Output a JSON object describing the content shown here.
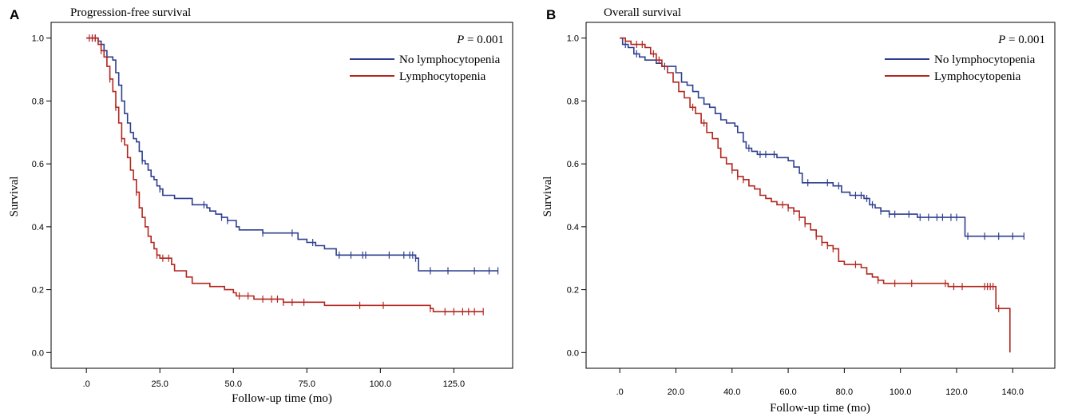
{
  "figure": {
    "colors": {
      "no_lympho": "#2e3f8f",
      "lympho": "#b3261e",
      "axis": "#000000"
    }
  },
  "chart_data": [
    {
      "type": "line",
      "panel": "A",
      "title": "Progression-free survival",
      "xlabel": "Follow-up time (mo)",
      "ylabel": "Survival",
      "xlim": [
        -12,
        145
      ],
      "ylim": [
        -0.05,
        1.05
      ],
      "x_ticks": [
        0,
        25,
        50,
        75,
        100,
        125
      ],
      "x_tick_labels": [
        ".0",
        "25.0",
        "50.0",
        "75.0",
        "100.0",
        "125.0"
      ],
      "y_ticks": [
        0,
        0.2,
        0.4,
        0.6,
        0.8,
        1.0
      ],
      "y_tick_labels": [
        "0.0",
        "0.2",
        "0.4",
        "0.6",
        "0.8",
        "1.0"
      ],
      "p_value": {
        "prefix": "P",
        "text": " = 0.001"
      },
      "legend_position": "top-right",
      "series": [
        {
          "name": "No lymphocytopenia",
          "color": "#2e3f8f",
          "steps": [
            [
              0,
              1.0
            ],
            [
              4,
              0.99
            ],
            [
              5,
              0.98
            ],
            [
              6,
              0.96
            ],
            [
              7,
              0.94
            ],
            [
              9,
              0.93
            ],
            [
              10,
              0.89
            ],
            [
              11,
              0.85
            ],
            [
              12,
              0.8
            ],
            [
              13,
              0.76
            ],
            [
              14,
              0.73
            ],
            [
              15,
              0.7
            ],
            [
              16,
              0.68
            ],
            [
              17,
              0.67
            ],
            [
              18,
              0.64
            ],
            [
              19,
              0.61
            ],
            [
              20,
              0.6
            ],
            [
              21,
              0.58
            ],
            [
              22,
              0.56
            ],
            [
              23,
              0.55
            ],
            [
              24,
              0.53
            ],
            [
              25,
              0.52
            ],
            [
              26,
              0.5
            ],
            [
              30,
              0.49
            ],
            [
              36,
              0.47
            ],
            [
              41,
              0.46
            ],
            [
              42,
              0.45
            ],
            [
              44,
              0.44
            ],
            [
              46,
              0.43
            ],
            [
              48,
              0.42
            ],
            [
              51,
              0.4
            ],
            [
              52,
              0.39
            ],
            [
              60,
              0.38
            ],
            [
              72,
              0.36
            ],
            [
              75,
              0.35
            ],
            [
              78,
              0.34
            ],
            [
              81,
              0.33
            ],
            [
              85,
              0.31
            ],
            [
              112,
              0.3
            ],
            [
              113,
              0.26
            ],
            [
              140,
              0.26
            ]
          ],
          "censors": [
            2,
            3,
            5,
            19,
            25,
            40,
            46,
            48,
            60,
            70,
            77,
            86,
            90,
            94,
            95,
            103,
            108,
            110,
            111,
            112,
            117,
            123,
            132,
            137,
            140
          ]
        },
        {
          "name": "Lymphocytopenia",
          "color": "#b3261e",
          "steps": [
            [
              0,
              1.0
            ],
            [
              4,
              0.98
            ],
            [
              5,
              0.96
            ],
            [
              6,
              0.94
            ],
            [
              7,
              0.91
            ],
            [
              8,
              0.87
            ],
            [
              9,
              0.83
            ],
            [
              10,
              0.78
            ],
            [
              11,
              0.73
            ],
            [
              12,
              0.68
            ],
            [
              13,
              0.66
            ],
            [
              14,
              0.62
            ],
            [
              15,
              0.58
            ],
            [
              16,
              0.55
            ],
            [
              17,
              0.51
            ],
            [
              18,
              0.46
            ],
            [
              19,
              0.43
            ],
            [
              20,
              0.4
            ],
            [
              21,
              0.37
            ],
            [
              22,
              0.35
            ],
            [
              23,
              0.33
            ],
            [
              24,
              0.31
            ],
            [
              25,
              0.3
            ],
            [
              29,
              0.28
            ],
            [
              30,
              0.26
            ],
            [
              34,
              0.24
            ],
            [
              36,
              0.22
            ],
            [
              42,
              0.21
            ],
            [
              47,
              0.2
            ],
            [
              50,
              0.19
            ],
            [
              51,
              0.18
            ],
            [
              57,
              0.17
            ],
            [
              67,
              0.16
            ],
            [
              81,
              0.15
            ],
            [
              117,
              0.14
            ],
            [
              118,
              0.13
            ],
            [
              135,
              0.13
            ]
          ],
          "censors": [
            1,
            2,
            3,
            5,
            8,
            10,
            12,
            17,
            24,
            26,
            28,
            52,
            55,
            60,
            63,
            65,
            67,
            70,
            74,
            93,
            101,
            117,
            122,
            125,
            128,
            130,
            132,
            135
          ]
        }
      ]
    },
    {
      "type": "line",
      "panel": "B",
      "title": "Overall survival",
      "xlabel": "Follow-up time (mo)",
      "ylabel": "Survival",
      "xlim": [
        -12,
        155
      ],
      "ylim": [
        -0.05,
        1.05
      ],
      "x_ticks": [
        0,
        20,
        40,
        60,
        80,
        100,
        120,
        140
      ],
      "x_tick_labels": [
        ".0",
        "20.0",
        "40.0",
        "60.0",
        "80.0",
        "100.0",
        "120.0",
        "140.0"
      ],
      "y_ticks": [
        0,
        0.2,
        0.4,
        0.6,
        0.8,
        1.0
      ],
      "y_tick_labels": [
        "0.0",
        "0.2",
        "0.4",
        "0.6",
        "0.8",
        "1.0"
      ],
      "p_value": {
        "prefix": "P",
        "text": " = 0.001"
      },
      "legend_position": "top-right",
      "series": [
        {
          "name": "No lymphocytopenia",
          "color": "#2e3f8f",
          "steps": [
            [
              0,
              1.0
            ],
            [
              1,
              0.98
            ],
            [
              3,
              0.97
            ],
            [
              5,
              0.95
            ],
            [
              7,
              0.94
            ],
            [
              9,
              0.93
            ],
            [
              13,
              0.92
            ],
            [
              15,
              0.91
            ],
            [
              20,
              0.89
            ],
            [
              22,
              0.86
            ],
            [
              24,
              0.85
            ],
            [
              26,
              0.83
            ],
            [
              28,
              0.81
            ],
            [
              30,
              0.79
            ],
            [
              32,
              0.78
            ],
            [
              34,
              0.76
            ],
            [
              36,
              0.74
            ],
            [
              38,
              0.73
            ],
            [
              41,
              0.72
            ],
            [
              42,
              0.7
            ],
            [
              44,
              0.67
            ],
            [
              45,
              0.65
            ],
            [
              47,
              0.64
            ],
            [
              49,
              0.63
            ],
            [
              56,
              0.62
            ],
            [
              60,
              0.61
            ],
            [
              62,
              0.59
            ],
            [
              64,
              0.57
            ],
            [
              65,
              0.54
            ],
            [
              76,
              0.53
            ],
            [
              79,
              0.51
            ],
            [
              82,
              0.5
            ],
            [
              87,
              0.49
            ],
            [
              89,
              0.47
            ],
            [
              91,
              0.46
            ],
            [
              93,
              0.45
            ],
            [
              96,
              0.44
            ],
            [
              105,
              0.44
            ],
            [
              106,
              0.43
            ],
            [
              123,
              0.37
            ],
            [
              144,
              0.37
            ]
          ],
          "censors": [
            2,
            6,
            16,
            46,
            50,
            52,
            55,
            67,
            74,
            78,
            84,
            86,
            88,
            90,
            93,
            96,
            98,
            103,
            107,
            110,
            113,
            115,
            118,
            120,
            124,
            130,
            135,
            140,
            144
          ]
        },
        {
          "name": "Lymphocytopenia",
          "color": "#b3261e",
          "steps": [
            [
              0,
              1.0
            ],
            [
              2,
              0.99
            ],
            [
              4,
              0.98
            ],
            [
              9,
              0.97
            ],
            [
              11,
              0.95
            ],
            [
              13,
              0.93
            ],
            [
              15,
              0.91
            ],
            [
              17,
              0.89
            ],
            [
              19,
              0.86
            ],
            [
              21,
              0.83
            ],
            [
              23,
              0.81
            ],
            [
              25,
              0.78
            ],
            [
              27,
              0.76
            ],
            [
              29,
              0.73
            ],
            [
              31,
              0.7
            ],
            [
              33,
              0.68
            ],
            [
              35,
              0.65
            ],
            [
              36,
              0.62
            ],
            [
              38,
              0.6
            ],
            [
              40,
              0.58
            ],
            [
              42,
              0.56
            ],
            [
              44,
              0.55
            ],
            [
              46,
              0.53
            ],
            [
              48,
              0.52
            ],
            [
              50,
              0.5
            ],
            [
              52,
              0.49
            ],
            [
              54,
              0.48
            ],
            [
              56,
              0.47
            ],
            [
              58,
              0.47
            ],
            [
              60,
              0.46
            ],
            [
              62,
              0.45
            ],
            [
              64,
              0.43
            ],
            [
              66,
              0.41
            ],
            [
              68,
              0.39
            ],
            [
              70,
              0.37
            ],
            [
              72,
              0.35
            ],
            [
              74,
              0.34
            ],
            [
              76,
              0.33
            ],
            [
              78,
              0.29
            ],
            [
              80,
              0.28
            ],
            [
              82,
              0.28
            ],
            [
              86,
              0.27
            ],
            [
              88,
              0.25
            ],
            [
              90,
              0.24
            ],
            [
              92,
              0.23
            ],
            [
              94,
              0.22
            ],
            [
              98,
              0.22
            ],
            [
              117,
              0.21
            ],
            [
              134,
              0.14
            ],
            [
              139,
              0.0
            ]
          ],
          "censors": [
            6,
            8,
            12,
            14,
            26,
            30,
            40,
            42,
            44,
            58,
            60,
            62,
            64,
            66,
            70,
            72,
            74,
            76,
            84,
            92,
            98,
            104,
            116,
            119,
            122,
            130,
            131,
            132,
            133,
            135
          ]
        }
      ]
    }
  ]
}
